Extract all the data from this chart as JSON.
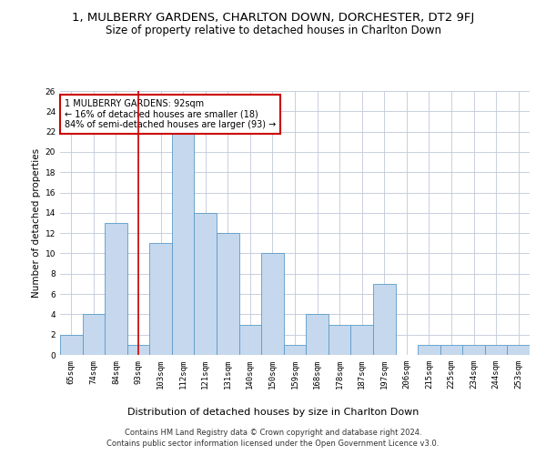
{
  "title1": "1, MULBERRY GARDENS, CHARLTON DOWN, DORCHESTER, DT2 9FJ",
  "title2": "Size of property relative to detached houses in Charlton Down",
  "xlabel": "Distribution of detached houses by size in Charlton Down",
  "ylabel": "Number of detached properties",
  "footer1": "Contains HM Land Registry data © Crown copyright and database right 2024.",
  "footer2": "Contains public sector information licensed under the Open Government Licence v3.0.",
  "annotation_title": "1 MULBERRY GARDENS: 92sqm",
  "annotation_line1": "← 16% of detached houses are smaller (18)",
  "annotation_line2": "84% of semi-detached houses are larger (93) →",
  "categories": [
    "65sqm",
    "74sqm",
    "84sqm",
    "93sqm",
    "103sqm",
    "112sqm",
    "121sqm",
    "131sqm",
    "140sqm",
    "150sqm",
    "159sqm",
    "168sqm",
    "178sqm",
    "187sqm",
    "197sqm",
    "206sqm",
    "215sqm",
    "225sqm",
    "234sqm",
    "244sqm",
    "253sqm"
  ],
  "values": [
    2,
    4,
    13,
    1,
    11,
    22,
    14,
    12,
    3,
    10,
    1,
    4,
    3,
    3,
    7,
    0,
    1,
    1,
    1,
    1,
    1
  ],
  "bar_color": "#c5d8ed",
  "bar_edge_color": "#5a9ac8",
  "red_line_index": 3,
  "red_line_color": "#cc0000",
  "annotation_box_edge_color": "#cc0000",
  "grid_color": "#c0c8d8",
  "ylim": [
    0,
    26
  ],
  "yticks": [
    0,
    2,
    4,
    6,
    8,
    10,
    12,
    14,
    16,
    18,
    20,
    22,
    24,
    26
  ],
  "title1_fontsize": 9.5,
  "title2_fontsize": 8.5,
  "xlabel_fontsize": 8,
  "ylabel_fontsize": 7.5,
  "tick_fontsize": 6.5,
  "annotation_fontsize": 7,
  "footer_fontsize": 6
}
